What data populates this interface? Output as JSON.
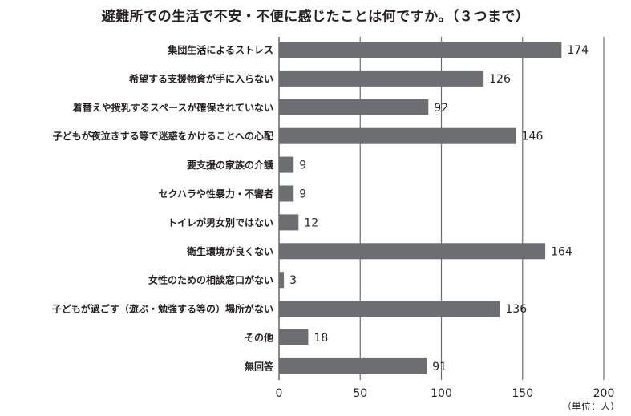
{
  "chart_data": {
    "type": "bar",
    "orientation": "horizontal",
    "title": "避難所での生活で不安・不便に感じたことは何ですか。（３つまで）",
    "unit_label": "（単位：人）",
    "categories": [
      "集団生活によるストレス",
      "希望する支援物資が手に入らない",
      "着替えや授乳するスペースが確保されていない",
      "子どもが夜泣きする等で迷惑をかけることへの心配",
      "要支援の家族の介護",
      "セクハラや性暴力・不審者",
      "トイレが男女別ではない",
      "衛生環境が良くない",
      "女性のための相談窓口がない",
      "子どもが過ごす（遊ぶ・勉強する等の）場所がない",
      "その他",
      "無回答"
    ],
    "values": [
      174,
      126,
      92,
      146,
      9,
      9,
      12,
      164,
      3,
      136,
      18,
      91
    ],
    "xlim": [
      0,
      200
    ],
    "xticks": [
      0,
      50,
      100,
      150,
      200
    ],
    "grid": true,
    "colors": {
      "bar": "#6d6e71",
      "grid": "#6d6e71",
      "text": "#231f20"
    }
  }
}
